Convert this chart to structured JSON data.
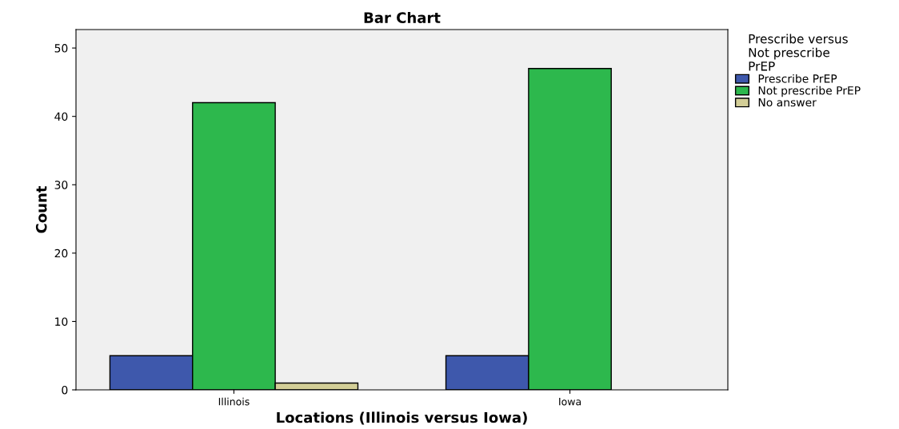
{
  "chart_data": {
    "type": "bar",
    "title": "Bar Chart",
    "xlabel": "Locations (Illinois versus Iowa)",
    "ylabel": "Count",
    "legend_title": "Prescribe versus\nNot prescribe\nPrEP",
    "categories": [
      "Illinois",
      "Iowa"
    ],
    "series": [
      {
        "name": "Prescribe PrEP",
        "color": "#3e58ac",
        "values": [
          5,
          5
        ]
      },
      {
        "name": "Not prescribe PrEP",
        "color": "#2db84d",
        "values": [
          42,
          47
        ]
      },
      {
        "name": "No answer",
        "color": "#d3ce97",
        "values": [
          1,
          null
        ]
      }
    ],
    "ylim": [
      0,
      52.7
    ],
    "yticks": [
      0,
      10,
      20,
      30,
      40,
      50
    ],
    "grid": false,
    "legend": "right"
  }
}
